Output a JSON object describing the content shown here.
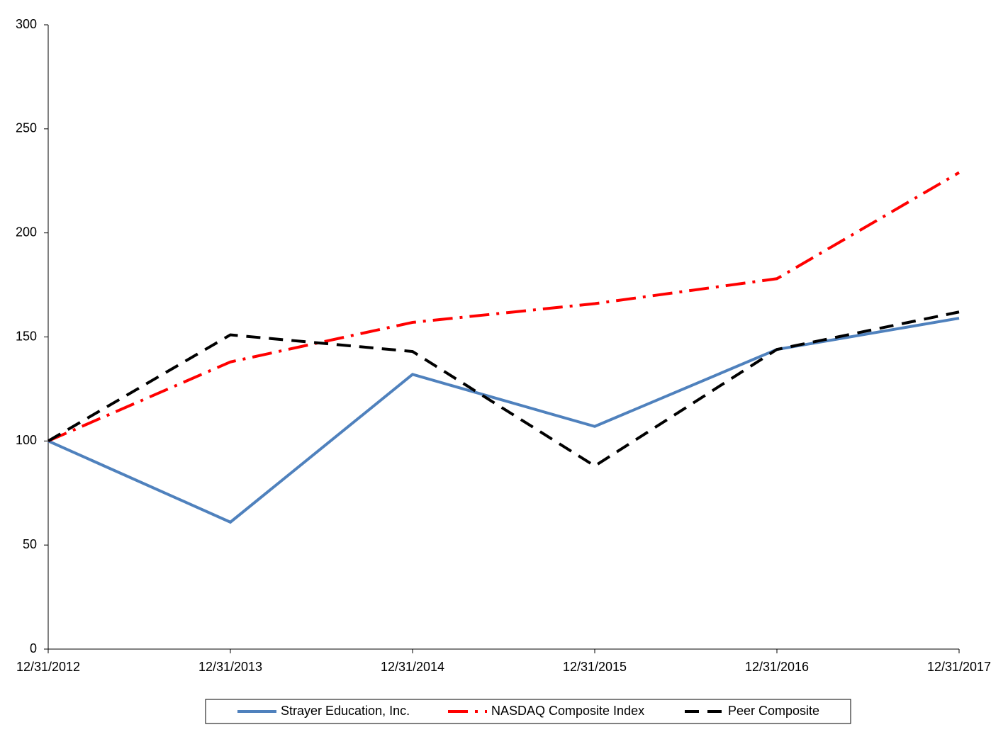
{
  "chart_data": {
    "type": "line",
    "categories": [
      "12/31/2012",
      "12/31/2013",
      "12/31/2014",
      "12/31/2015",
      "12/31/2016",
      "12/31/2017"
    ],
    "series": [
      {
        "name": "Strayer Education, Inc.",
        "color": "#4f81bd",
        "dash": "solid",
        "values": [
          100,
          61,
          132,
          107,
          144,
          159
        ]
      },
      {
        "name": "NASDAQ Composite Index",
        "color": "#ff0000",
        "dash": "dashdot",
        "values": [
          100,
          138,
          157,
          166,
          178,
          229
        ]
      },
      {
        "name": "Peer Composite",
        "color": "#000000",
        "dash": "dash",
        "values": [
          100,
          151,
          143,
          88,
          144,
          162
        ]
      }
    ],
    "ylim": [
      0,
      300
    ],
    "yticks": [
      0,
      50,
      100,
      150,
      200,
      250,
      300
    ],
    "grid": false,
    "legend": "bottom"
  }
}
